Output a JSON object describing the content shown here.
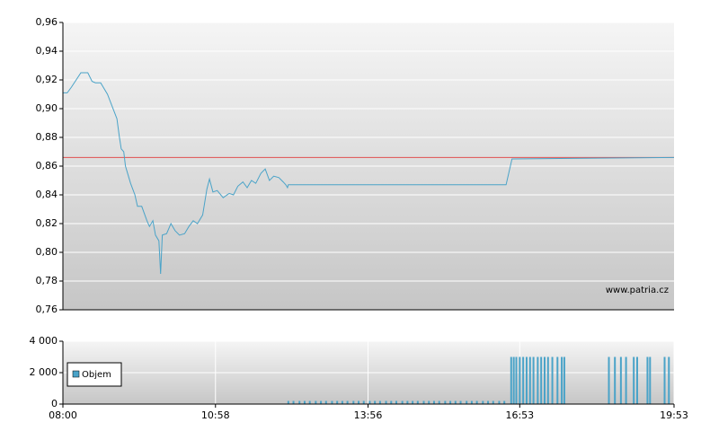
{
  "chart_data": [
    {
      "type": "line",
      "color": "#4aa3c8",
      "x": [
        "08:00",
        "08:05",
        "08:10",
        "08:21",
        "08:29",
        "08:34",
        "08:38",
        "08:44",
        "08:52",
        "09:03",
        "09:06",
        "09:08",
        "09:11",
        "09:13",
        "09:19",
        "09:24",
        "09:27",
        "09:32",
        "09:38",
        "09:41",
        "09:45",
        "09:48",
        "09:52",
        "09:54",
        "09:56",
        "10:01",
        "10:06",
        "10:11",
        "10:16",
        "10:22",
        "10:27",
        "10:32",
        "10:37",
        "10:43",
        "10:48",
        "10:51",
        "10:55",
        "11:00",
        "11:07",
        "11:14",
        "11:19",
        "11:24",
        "11:30",
        "11:35",
        "11:40",
        "11:45",
        "11:51",
        "11:56",
        "12:01",
        "12:06",
        "12:12",
        "12:17",
        "12:20",
        "12:22",
        "12:23",
        "16:37",
        "16:44",
        "19:53"
      ],
      "values": [
        0.911,
        0.911,
        0.915,
        0.925,
        0.925,
        0.919,
        0.918,
        0.918,
        0.91,
        0.893,
        0.88,
        0.872,
        0.87,
        0.86,
        0.848,
        0.84,
        0.832,
        0.832,
        0.822,
        0.818,
        0.822,
        0.812,
        0.808,
        0.785,
        0.812,
        0.813,
        0.82,
        0.815,
        0.812,
        0.813,
        0.818,
        0.822,
        0.82,
        0.826,
        0.844,
        0.851,
        0.842,
        0.843,
        0.838,
        0.841,
        0.84,
        0.846,
        0.849,
        0.845,
        0.85,
        0.848,
        0.855,
        0.858,
        0.85,
        0.853,
        0.852,
        0.849,
        0.847,
        0.845,
        0.847,
        0.847,
        0.865,
        0.866
      ],
      "reference_line": 0.866,
      "reference_color": "#e05050",
      "xlim": [
        "08:00",
        "19:53"
      ],
      "ylim": [
        0.76,
        0.96
      ],
      "yticks": [
        {
          "value": 0.76,
          "label": "0,76"
        },
        {
          "value": 0.78,
          "label": "0,78"
        },
        {
          "value": 0.8,
          "label": "0,80"
        },
        {
          "value": 0.82,
          "label": "0,82"
        },
        {
          "value": 0.84,
          "label": "0,84"
        },
        {
          "value": 0.86,
          "label": "0,86"
        },
        {
          "value": 0.88,
          "label": "0,88"
        },
        {
          "value": 0.9,
          "label": "0,90"
        },
        {
          "value": 0.92,
          "label": "0,92"
        },
        {
          "value": 0.94,
          "label": "0,94"
        },
        {
          "value": 0.96,
          "label": "0,96"
        }
      ],
      "grid": true,
      "watermark": "www.patria.cz"
    },
    {
      "type": "bar",
      "x": [
        "12:23",
        "12:29",
        "12:36",
        "12:42",
        "12:48",
        "12:55",
        "13:01",
        "13:07",
        "13:14",
        "13:20",
        "13:26",
        "13:32",
        "13:39",
        "13:45",
        "13:51",
        "13:58",
        "14:04",
        "14:10",
        "14:17",
        "14:23",
        "14:29",
        "14:36",
        "14:42",
        "14:48",
        "14:54",
        "15:01",
        "15:07",
        "15:13",
        "15:19",
        "15:26",
        "15:32",
        "15:38",
        "15:44",
        "15:51",
        "15:57",
        "16:03",
        "16:10",
        "16:16",
        "16:22",
        "16:29",
        "16:35",
        "16:43",
        "16:46",
        "16:49",
        "16:53",
        "16:57",
        "17:01",
        "17:05",
        "17:09",
        "17:14",
        "17:18",
        "17:22",
        "17:26",
        "17:31",
        "17:37",
        "17:42",
        "17:45",
        "18:37",
        "18:44",
        "18:51",
        "18:57",
        "19:06",
        "19:10",
        "19:22",
        "19:25",
        "19:42",
        "19:47"
      ],
      "series": [
        {
          "name": "Objem",
          "color": "#4aa3c8",
          "values": [
            200,
            200,
            200,
            200,
            200,
            200,
            200,
            200,
            200,
            200,
            200,
            200,
            200,
            200,
            200,
            200,
            200,
            200,
            200,
            200,
            200,
            200,
            200,
            200,
            200,
            200,
            200,
            200,
            200,
            200,
            200,
            200,
            200,
            200,
            200,
            200,
            200,
            200,
            200,
            200,
            200,
            3000,
            3000,
            3000,
            3000,
            3000,
            3000,
            3000,
            3000,
            3000,
            3000,
            3000,
            3000,
            3000,
            3000,
            3000,
            3000,
            3000,
            3000,
            3000,
            3000,
            3000,
            3000,
            3000,
            3000,
            3000,
            3000
          ]
        }
      ],
      "xlim": [
        "08:00",
        "19:53"
      ],
      "xticks": [
        "08:00",
        "10:58",
        "13:56",
        "16:53",
        "19:53"
      ],
      "ylim": [
        0,
        4000
      ],
      "yticks": [
        0,
        {
          "value": 2000,
          "label": "2 000"
        },
        {
          "value": 4000,
          "label": "4 000"
        }
      ],
      "grid": true,
      "legend": "left"
    }
  ]
}
